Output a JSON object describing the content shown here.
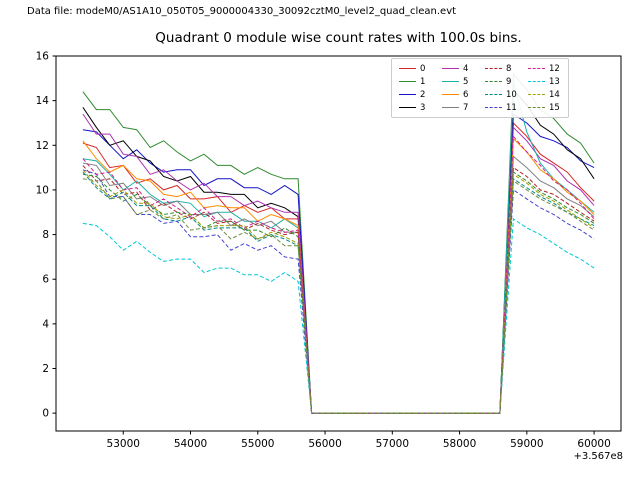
{
  "header": {
    "data_file_label": "Data file: modeM0/AS1A10_050T05_9000004330_30092cztM0_level2_quad_clean.evt"
  },
  "chart_data": {
    "type": "line",
    "title": "Quadrant 0 module wise count rates with 100.0s bins.",
    "xlabel": "",
    "ylabel": "",
    "x_offset_label": "+3.567e8",
    "x_offset_value": 356700000,
    "bin_size_s": 100.0,
    "quadrant": 0,
    "xlim": [
      52000,
      60400
    ],
    "ylim": [
      -0.8,
      16
    ],
    "x_ticks": [
      53000,
      54000,
      55000,
      56000,
      57000,
      58000,
      59000,
      60000
    ],
    "y_ticks": [
      0,
      2,
      4,
      6,
      8,
      10,
      12,
      14,
      16
    ],
    "grid": false,
    "legend_position": "upper right",
    "legend_columns": 4,
    "x": [
      52400,
      52600,
      52800,
      53000,
      53200,
      53400,
      53600,
      53800,
      54000,
      54200,
      54400,
      54600,
      54800,
      55000,
      55200,
      55400,
      55600,
      55800,
      56000,
      56200,
      56400,
      56600,
      56800,
      57000,
      57200,
      57400,
      57600,
      57800,
      58000,
      58200,
      58400,
      58600,
      58800,
      59000,
      59200,
      59400,
      59600,
      59800,
      60000
    ],
    "series": [
      {
        "name": "0",
        "color": "#d62728",
        "dashed": false,
        "values": [
          12.1,
          11.9,
          11.0,
          11.1,
          10.3,
          10.5,
          10.0,
          10.2,
          9.6,
          9.6,
          9.7,
          9.0,
          9.3,
          9.0,
          9.2,
          8.7,
          8.7,
          0,
          0,
          0,
          0,
          0,
          0,
          0,
          0,
          0,
          0,
          0,
          0,
          0,
          0,
          0,
          13.0,
          12.4,
          11.6,
          11.2,
          10.8,
          10.1,
          9.5
        ]
      },
      {
        "name": "1",
        "color": "#2e8b2e",
        "dashed": false,
        "values": [
          14.4,
          13.6,
          13.6,
          12.8,
          12.7,
          11.9,
          12.2,
          11.7,
          11.3,
          11.6,
          11.1,
          11.1,
          10.7,
          11.0,
          10.7,
          10.5,
          10.5,
          0,
          0,
          0,
          0,
          0,
          0,
          0,
          0,
          0,
          0,
          0,
          0,
          0,
          0,
          0,
          15.2,
          14.5,
          13.6,
          13.2,
          12.5,
          12.1,
          11.2
        ]
      },
      {
        "name": "2",
        "color": "#1414c8",
        "dashed": false,
        "values": [
          12.7,
          12.6,
          12.0,
          11.4,
          11.8,
          11.2,
          10.8,
          10.9,
          10.9,
          10.2,
          10.5,
          10.5,
          10.1,
          10.1,
          9.8,
          10.2,
          9.8,
          0,
          0,
          0,
          0,
          0,
          0,
          0,
          0,
          0,
          0,
          0,
          0,
          0,
          0,
          0,
          13.4,
          13.0,
          12.4,
          12.2,
          11.9,
          11.3,
          11.0
        ]
      },
      {
        "name": "3",
        "color": "#000000",
        "dashed": false,
        "values": [
          13.7,
          12.8,
          12.0,
          12.2,
          11.5,
          11.3,
          10.6,
          10.4,
          10.6,
          9.9,
          9.9,
          9.8,
          9.8,
          9.2,
          9.4,
          9.2,
          8.8,
          0,
          0,
          0,
          0,
          0,
          0,
          0,
          0,
          0,
          0,
          0,
          0,
          0,
          0,
          0,
          14.5,
          13.8,
          12.9,
          12.5,
          11.8,
          11.4,
          10.5
        ]
      },
      {
        "name": "4",
        "color": "#b030b0",
        "dashed": false,
        "values": [
          13.4,
          12.5,
          12.5,
          11.6,
          11.5,
          10.7,
          10.9,
          10.4,
          10.0,
          10.3,
          9.7,
          9.7,
          9.3,
          9.5,
          9.2,
          9.0,
          9.0,
          0,
          0,
          0,
          0,
          0,
          0,
          0,
          0,
          0,
          0,
          0,
          0,
          0,
          0,
          0,
          12.8,
          12.2,
          11.4,
          11.1,
          10.4,
          10.0,
          9.3
        ]
      },
      {
        "name": "5",
        "color": "#20b2aa",
        "dashed": false,
        "values": [
          11.4,
          11.3,
          10.7,
          10.0,
          10.4,
          9.8,
          9.4,
          9.5,
          9.4,
          8.8,
          9.0,
          9.0,
          8.6,
          8.6,
          8.3,
          8.7,
          8.3,
          0,
          0,
          0,
          0,
          0,
          0,
          0,
          0,
          0,
          0,
          0,
          0,
          0,
          0,
          0,
          14.8,
          12.6,
          11.2,
          10.5,
          10.0,
          9.5,
          9.0
        ]
      },
      {
        "name": "6",
        "color": "#ff8c00",
        "dashed": false,
        "values": [
          12.2,
          11.4,
          10.8,
          11.1,
          10.5,
          10.4,
          9.8,
          9.7,
          9.9,
          9.2,
          9.3,
          9.2,
          9.2,
          8.6,
          8.9,
          8.7,
          8.4,
          0,
          0,
          0,
          0,
          0,
          0,
          0,
          0,
          0,
          0,
          0,
          0,
          0,
          0,
          0,
          12.3,
          11.7,
          10.9,
          10.5,
          9.9,
          9.5,
          8.9
        ]
      },
      {
        "name": "7",
        "color": "#808080",
        "dashed": false,
        "values": [
          11.2,
          11.1,
          10.2,
          10.3,
          9.6,
          9.7,
          9.3,
          9.5,
          8.9,
          8.9,
          9.0,
          8.4,
          8.7,
          8.4,
          8.6,
          8.1,
          8.1,
          0,
          0,
          0,
          0,
          0,
          0,
          0,
          0,
          0,
          0,
          0,
          0,
          0,
          0,
          0,
          11.5,
          11.0,
          10.4,
          10.1,
          9.6,
          9.3,
          8.8
        ]
      },
      {
        "name": "8",
        "color": "#b22222",
        "dashed": true,
        "values": [
          11.1,
          10.4,
          10.5,
          9.8,
          9.9,
          9.1,
          9.4,
          9.0,
          8.7,
          9.0,
          8.5,
          8.6,
          8.2,
          8.5,
          8.2,
          8.0,
          8.1,
          0,
          0,
          0,
          0,
          0,
          0,
          0,
          0,
          0,
          0,
          0,
          0,
          0,
          0,
          0,
          11.0,
          10.6,
          10.0,
          9.8,
          9.4,
          9.0,
          8.6
        ]
      },
      {
        "name": "9",
        "color": "#2e8b2e",
        "dashed": true,
        "values": [
          10.7,
          10.6,
          10.0,
          9.5,
          9.8,
          9.3,
          8.9,
          9.0,
          8.9,
          8.3,
          8.6,
          8.6,
          8.2,
          8.2,
          7.9,
          8.3,
          7.9,
          0,
          0,
          0,
          0,
          0,
          0,
          0,
          0,
          0,
          0,
          0,
          0,
          0,
          0,
          0,
          10.8,
          10.4,
          9.9,
          9.6,
          9.2,
          8.9,
          8.5
        ]
      },
      {
        "name": "10",
        "color": "#008b8b",
        "dashed": true,
        "values": [
          10.8,
          10.1,
          9.6,
          9.9,
          9.3,
          9.3,
          8.7,
          8.6,
          8.8,
          8.2,
          8.3,
          8.3,
          8.3,
          7.7,
          8.0,
          7.8,
          7.5,
          0,
          0,
          0,
          0,
          0,
          0,
          0,
          0,
          0,
          0,
          0,
          0,
          0,
          0,
          0,
          10.5,
          10.1,
          9.7,
          9.4,
          9.0,
          8.7,
          8.4
        ]
      },
      {
        "name": "11",
        "color": "#4444cc",
        "dashed": true,
        "values": [
          10.9,
          10.7,
          9.7,
          9.7,
          8.9,
          8.9,
          8.5,
          8.6,
          7.9,
          7.9,
          8.0,
          7.3,
          7.6,
          7.3,
          7.5,
          7.0,
          6.9,
          0,
          0,
          0,
          0,
          0,
          0,
          0,
          0,
          0,
          0,
          0,
          0,
          0,
          0,
          0,
          10.0,
          9.6,
          9.2,
          8.9,
          8.5,
          8.2,
          7.8
        ]
      },
      {
        "name": "12",
        "color": "#d02090",
        "dashed": true,
        "values": [
          11.4,
          10.7,
          10.8,
          10.0,
          10.1,
          9.3,
          9.6,
          9.2,
          8.8,
          9.2,
          8.6,
          8.7,
          8.3,
          8.6,
          8.3,
          8.1,
          8.2,
          0,
          0,
          0,
          0,
          0,
          0,
          0,
          0,
          0,
          0,
          0,
          0,
          0,
          0,
          0,
          12.4,
          11.7,
          11.1,
          10.4,
          10.0,
          9.4,
          8.7
        ]
      },
      {
        "name": "13",
        "color": "#00c8d7",
        "dashed": true,
        "values": [
          8.5,
          8.4,
          7.9,
          7.3,
          7.7,
          7.2,
          6.8,
          6.9,
          6.9,
          6.3,
          6.5,
          6.5,
          6.2,
          6.2,
          5.9,
          6.3,
          5.9,
          0,
          0,
          0,
          0,
          0,
          0,
          0,
          0,
          0,
          0,
          0,
          0,
          0,
          0,
          0,
          8.7,
          8.3,
          8.0,
          7.6,
          7.2,
          6.9,
          6.5
        ]
      },
      {
        "name": "14",
        "color": "#a0a000",
        "dashed": true,
        "values": [
          10.9,
          10.2,
          9.7,
          10.0,
          9.4,
          9.4,
          8.8,
          8.7,
          8.9,
          8.3,
          8.4,
          8.4,
          8.4,
          7.8,
          8.1,
          7.9,
          7.6,
          0,
          0,
          0,
          0,
          0,
          0,
          0,
          0,
          0,
          0,
          0,
          0,
          0,
          0,
          0,
          10.7,
          10.3,
          9.8,
          9.5,
          9.1,
          8.7,
          8.3
        ]
      },
      {
        "name": "15",
        "color": "#6e8b3d",
        "dashed": true,
        "values": [
          10.5,
          10.4,
          9.6,
          9.7,
          8.9,
          9.1,
          8.7,
          8.9,
          8.2,
          8.3,
          8.4,
          7.8,
          8.1,
          7.8,
          8.0,
          7.5,
          7.5,
          0,
          0,
          0,
          0,
          0,
          0,
          0,
          0,
          0,
          0,
          0,
          0,
          0,
          0,
          0,
          10.4,
          10.0,
          9.6,
          9.3,
          9.0,
          8.6,
          8.2
        ]
      }
    ]
  }
}
